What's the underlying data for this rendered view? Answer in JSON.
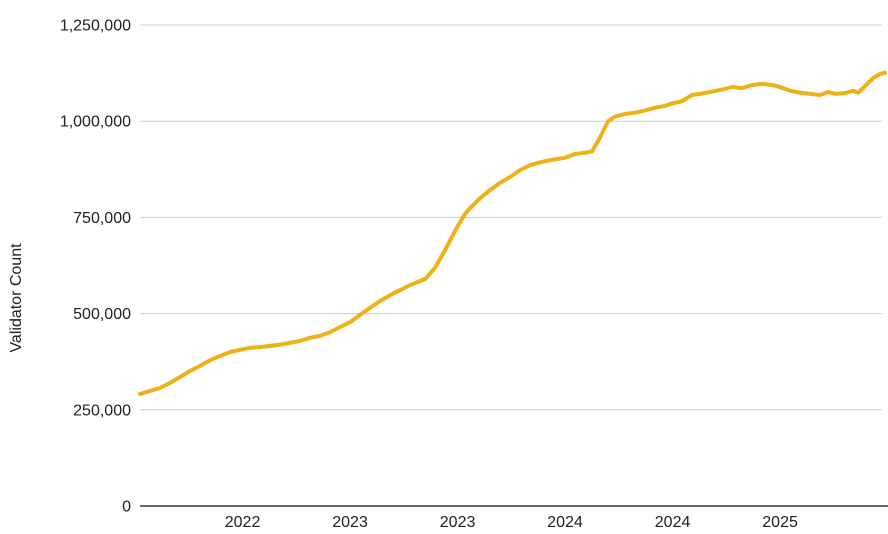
{
  "chart_data": {
    "type": "line",
    "title": "",
    "xlabel": "",
    "ylabel": "Validator Count",
    "legend_position": "none",
    "grid": "horizontal-only",
    "ylim": [
      0,
      1250000
    ],
    "xlim": [
      2022.023,
      2025.488
    ],
    "y_ticks": [
      {
        "value": 0,
        "label": "0"
      },
      {
        "value": 250000,
        "label": "250,000"
      },
      {
        "value": 500000,
        "label": "500,000"
      },
      {
        "value": 750000,
        "label": "750,000"
      },
      {
        "value": 1000000,
        "label": "1,000,000"
      },
      {
        "value": 1250000,
        "label": "1,250,000"
      }
    ],
    "x_ticks": [
      {
        "value": 2022.5,
        "label": "2022"
      },
      {
        "value": 2023.0,
        "label": "2023"
      },
      {
        "value": 2023.5,
        "label": "2023"
      },
      {
        "value": 2024.0,
        "label": "2024"
      },
      {
        "value": 2024.5,
        "label": "2024"
      },
      {
        "value": 2025.0,
        "label": "2025"
      }
    ],
    "series": [
      {
        "name": "Validator Count",
        "color": "#EFB118",
        "points": [
          [
            2022.023,
            291000
          ],
          [
            2022.07,
            299000
          ],
          [
            2022.116,
            307000
          ],
          [
            2022.163,
            320000
          ],
          [
            2022.209,
            335000
          ],
          [
            2022.256,
            351000
          ],
          [
            2022.302,
            364000
          ],
          [
            2022.349,
            379000
          ],
          [
            2022.395,
            390000
          ],
          [
            2022.442,
            400000
          ],
          [
            2022.488,
            406000
          ],
          [
            2022.535,
            411000
          ],
          [
            2022.581,
            413000
          ],
          [
            2022.628,
            416000
          ],
          [
            2022.674,
            419000
          ],
          [
            2022.721,
            424000
          ],
          [
            2022.767,
            429000
          ],
          [
            2022.814,
            437000
          ],
          [
            2022.86,
            442000
          ],
          [
            2022.907,
            452000
          ],
          [
            2022.953,
            465000
          ],
          [
            2023.0,
            478000
          ],
          [
            2023.047,
            497000
          ],
          [
            2023.093,
            515000
          ],
          [
            2023.14,
            533000
          ],
          [
            2023.186,
            548000
          ],
          [
            2023.233,
            561000
          ],
          [
            2023.279,
            574000
          ],
          [
            2023.326,
            585000
          ],
          [
            2023.349,
            590000
          ],
          [
            2023.395,
            619000
          ],
          [
            2023.442,
            665000
          ],
          [
            2023.488,
            715000
          ],
          [
            2023.535,
            760000
          ],
          [
            2023.558,
            774000
          ],
          [
            2023.605,
            800000
          ],
          [
            2023.651,
            821000
          ],
          [
            2023.698,
            840000
          ],
          [
            2023.744,
            855000
          ],
          [
            2023.791,
            873000
          ],
          [
            2023.837,
            886000
          ],
          [
            2023.884,
            893000
          ],
          [
            2023.93,
            899000
          ],
          [
            2023.977,
            903000
          ],
          [
            2024.0,
            905000
          ],
          [
            2024.047,
            915000
          ],
          [
            2024.093,
            918000
          ],
          [
            2024.126,
            922000
          ],
          [
            2024.163,
            958000
          ],
          [
            2024.2,
            1000000
          ],
          [
            2024.233,
            1012000
          ],
          [
            2024.279,
            1019000
          ],
          [
            2024.326,
            1022000
          ],
          [
            2024.372,
            1028000
          ],
          [
            2024.419,
            1035000
          ],
          [
            2024.465,
            1040000
          ],
          [
            2024.498,
            1046000
          ],
          [
            2024.544,
            1052000
          ],
          [
            2024.591,
            1068000
          ],
          [
            2024.637,
            1072000
          ],
          [
            2024.684,
            1077000
          ],
          [
            2024.73,
            1082000
          ],
          [
            2024.777,
            1089000
          ],
          [
            2024.823,
            1086000
          ],
          [
            2024.87,
            1094000
          ],
          [
            2024.916,
            1097000
          ],
          [
            2024.963,
            1094000
          ],
          [
            2025.0,
            1089000
          ],
          [
            2025.047,
            1079000
          ],
          [
            2025.093,
            1074000
          ],
          [
            2025.14,
            1071000
          ],
          [
            2025.186,
            1068000
          ],
          [
            2025.223,
            1076000
          ],
          [
            2025.26,
            1071000
          ],
          [
            2025.302,
            1073000
          ],
          [
            2025.34,
            1079000
          ],
          [
            2025.363,
            1074000
          ],
          [
            2025.4,
            1094000
          ],
          [
            2025.433,
            1112000
          ],
          [
            2025.465,
            1123000
          ],
          [
            2025.488,
            1126000
          ]
        ]
      }
    ]
  },
  "colors": {
    "background": "#FFFFFF",
    "line": "#EFB118",
    "gridline": "#CCCCCC",
    "baseline": "#333333",
    "text": "#212121"
  }
}
